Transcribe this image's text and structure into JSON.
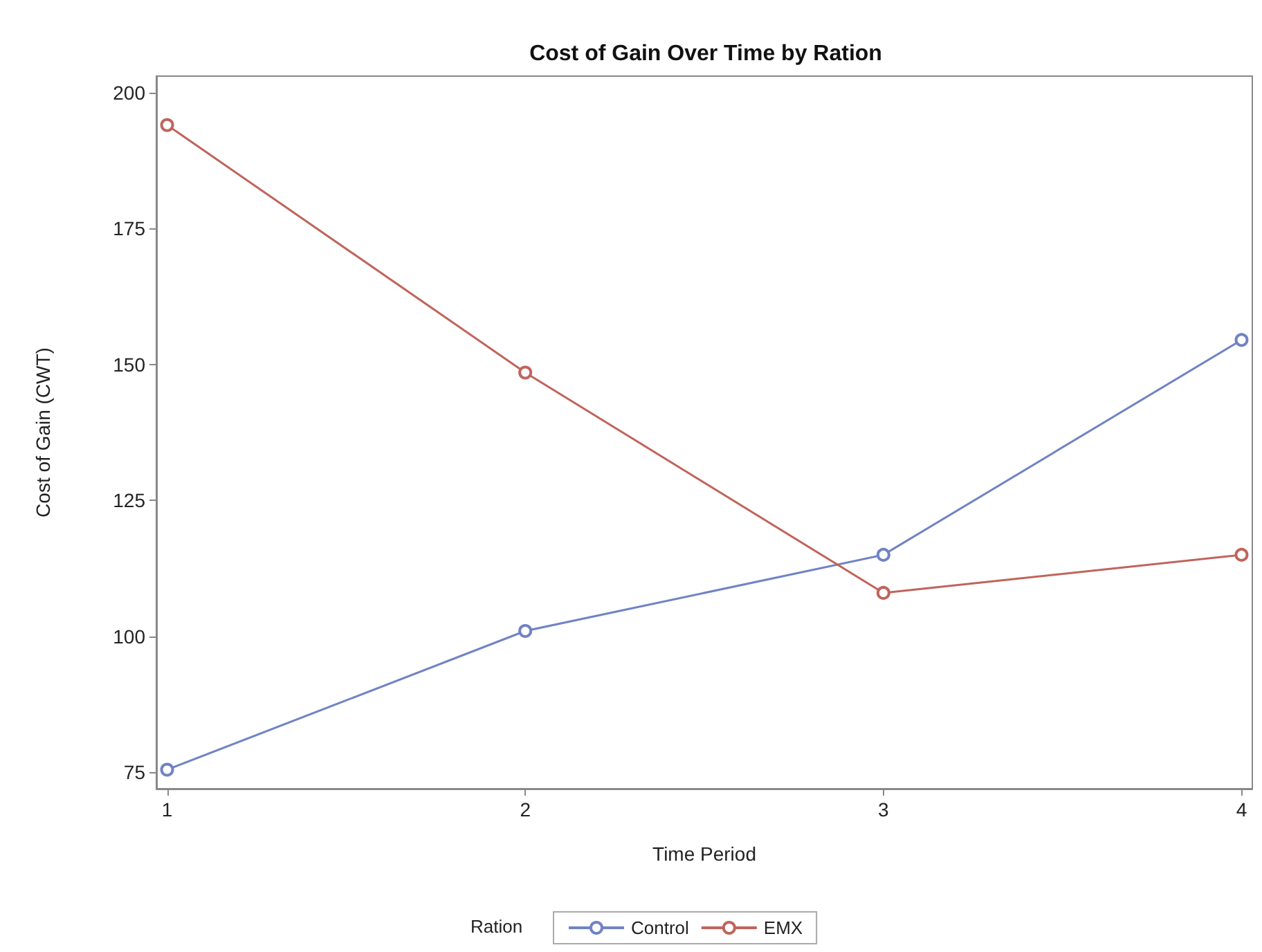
{
  "chart_data": {
    "type": "line",
    "title": "Cost of Gain Over Time by Ration",
    "xlabel": "Time Period",
    "ylabel": "Cost of Gain (CWT)",
    "legend_title": "Ration",
    "x": [
      1,
      2,
      3,
      4
    ],
    "series": [
      {
        "name": "Control",
        "color": "#7083c4",
        "values": [
          75.5,
          101,
          115,
          154.5
        ]
      },
      {
        "name": "EMX",
        "color": "#c0645c",
        "values": [
          194,
          148.5,
          108,
          115
        ]
      }
    ],
    "xlim": [
      0.97,
      4.03
    ],
    "xticks": [
      1,
      2,
      3,
      4
    ],
    "ylim": [
      72,
      203
    ],
    "yticks": [
      75,
      100,
      125,
      150,
      175,
      200
    ],
    "grid": false,
    "legend": "bottom",
    "marker": "circle",
    "line_style": "solid"
  }
}
